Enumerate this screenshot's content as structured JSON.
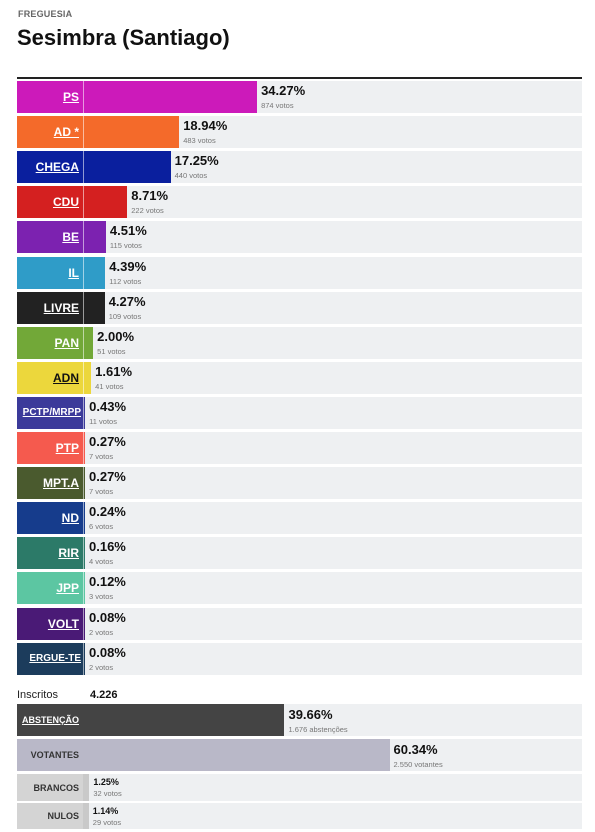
{
  "header": {
    "kicker": "FREGUESIA",
    "title": "Sesimbra (Santiago)"
  },
  "chart_data": {
    "type": "bar",
    "orientation": "horizontal",
    "title": "Sesimbra (Santiago)",
    "series": [
      {
        "label": "PS",
        "pct": 34.27,
        "pct_text": "34.27%",
        "votes_text": "874 votos",
        "color": "#cc1aba"
      },
      {
        "label": "AD *",
        "pct": 18.94,
        "pct_text": "18.94%",
        "votes_text": "483 votos",
        "color": "#f46a2a"
      },
      {
        "label": "CHEGA",
        "pct": 17.25,
        "pct_text": "17.25%",
        "votes_text": "440 votos",
        "color": "#0a1f9e"
      },
      {
        "label": "CDU",
        "pct": 8.71,
        "pct_text": "8.71%",
        "votes_text": "222 votos",
        "color": "#d42020"
      },
      {
        "label": "BE",
        "pct": 4.51,
        "pct_text": "4.51%",
        "votes_text": "115 votos",
        "color": "#7c22b0"
      },
      {
        "label": "IL",
        "pct": 4.39,
        "pct_text": "4.39%",
        "votes_text": "112 votos",
        "color": "#2f9cc8"
      },
      {
        "label": "LIVRE",
        "pct": 4.27,
        "pct_text": "4.27%",
        "votes_text": "109 votos",
        "color": "#222222"
      },
      {
        "label": "PAN",
        "pct": 2.0,
        "pct_text": "2.00%",
        "votes_text": "51 votos",
        "color": "#72a838"
      },
      {
        "label": "ADN",
        "pct": 1.61,
        "pct_text": "1.61%",
        "votes_text": "41 votos",
        "color": "#ecd73c"
      },
      {
        "label": "PCTP/MRPP",
        "pct": 0.43,
        "pct_text": "0.43%",
        "votes_text": "11 votos",
        "color": "#3b3a9a"
      },
      {
        "label": "PTP",
        "pct": 0.27,
        "pct_text": "0.27%",
        "votes_text": "7 votos",
        "color": "#f55a4e"
      },
      {
        "label": "MPT.A",
        "pct": 0.27,
        "pct_text": "0.27%",
        "votes_text": "7 votos",
        "color": "#4a5a2e"
      },
      {
        "label": "ND",
        "pct": 0.24,
        "pct_text": "0.24%",
        "votes_text": "6 votos",
        "color": "#163c8c"
      },
      {
        "label": "RIR",
        "pct": 0.16,
        "pct_text": "0.16%",
        "votes_text": "4 votos",
        "color": "#2c7a68"
      },
      {
        "label": "JPP",
        "pct": 0.12,
        "pct_text": "0.12%",
        "votes_text": "3 votos",
        "color": "#5cc6a2"
      },
      {
        "label": "VOLT",
        "pct": 0.08,
        "pct_text": "0.08%",
        "votes_text": "2 votos",
        "color": "#4a1a76"
      },
      {
        "label": "ERGUE-TE",
        "pct": 0.08,
        "pct_text": "0.08%",
        "votes_text": "2 votos",
        "color": "#1c3c5c"
      }
    ],
    "xlim": [
      0,
      100
    ]
  },
  "inscritos": {
    "label": "Inscritos",
    "value": "4.226"
  },
  "turnout": [
    {
      "label": "ABSTENÇÃO",
      "pct": 39.66,
      "pct_text": "39.66%",
      "sub_text": "1.676 abstenções",
      "color": "#444444",
      "label_style": "link"
    },
    {
      "label": "VOTANTES",
      "pct": 60.34,
      "pct_text": "60.34%",
      "sub_text": "2.550 votantes",
      "color": "#b9b8c8",
      "label_style": "dark"
    },
    {
      "label": "BRANCOS",
      "pct": 1.25,
      "pct_text": "1.25%",
      "sub_text": "32 votos",
      "color": "#c9c9c9",
      "label_style": "dark"
    },
    {
      "label": "NULOS",
      "pct": 1.14,
      "pct_text": "1.14%",
      "sub_text": "29 votos",
      "color": "#c9c9c9",
      "label_style": "dark"
    }
  ]
}
